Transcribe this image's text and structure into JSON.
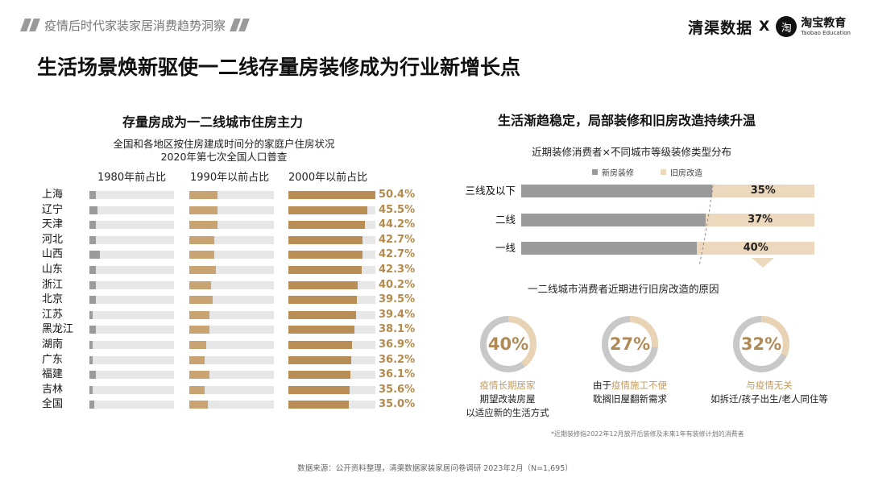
{
  "header": {
    "tag": "疫情后时代家装家居消费趋势洞察",
    "brand_left": "清渠数据",
    "brand_x": "X",
    "brand_logo_char": "淘",
    "brand_right_cn": "淘宝教育",
    "brand_right_en": "Taobao Education"
  },
  "main_title": "生活场景焕新驱使一二线存量房装修成为行业新增长点",
  "left": {
    "title": "存量房成为一二线城市住房主力",
    "subtitle_1": "全国和各地区按住房建成时间分的家庭户住房状况",
    "subtitle_2": "2020年第七次全国人口普查",
    "col_1980": "1980年前占比",
    "col_1990": "1990年以前占比",
    "col_2000": "2000年以前占比"
  },
  "right": {
    "title": "生活渐趋稳定，局部装修和旧房改造持续升温",
    "chart_title": "近期装修消费者×不同城市等级装修类型分布",
    "legend_new": "新房装修",
    "legend_old": "旧房改造",
    "reason_title": "一二线城市消费者近期进行旧房改造的原因",
    "d1_pct": "40%",
    "d1_cap_1": "疫情长期居家",
    "d1_cap_2": "期望改装房屋",
    "d1_cap_3": "以适应新的生活方式",
    "d2_pct": "27%",
    "d2_cap_pre": "由于",
    "d2_cap_acc": "疫情施工不便",
    "d2_cap_2": "耽搁旧屋翻新需求",
    "d3_pct": "32%",
    "d3_cap_1": "与疫情无关",
    "d3_cap_2": "如拆迁/孩子出生/老人同住等",
    "footnote": "*近期装修指2022年12月放开后装修及未来1年有装修计划的消费者"
  },
  "source": "数据来源：公开资料整理，清渠数据家装家居问卷调研 2023年2月（N=1,695）",
  "colors": {
    "gray": "#9b9b9b",
    "gold": "#b98e55",
    "gold_light": "#c9a371",
    "cream": "#ecd9bd",
    "track": "#e7e7e7"
  },
  "chart_data": [
    {
      "type": "bar",
      "orientation": "horizontal",
      "title": "存量房成为一二线城市住房主力",
      "categories": [
        "上海",
        "辽宁",
        "天津",
        "河北",
        "山西",
        "山东",
        "浙江",
        "北京",
        "江苏",
        "黑龙江",
        "湖南",
        "广东",
        "福建",
        "吉林",
        "全国"
      ],
      "series": [
        {
          "name": "1980年前占比",
          "values": [
            4,
            5,
            4,
            4,
            6,
            4,
            4,
            4,
            2,
            4,
            2,
            2,
            4,
            2,
            3
          ]
        },
        {
          "name": "1990年以前占比",
          "values": [
            17,
            17,
            17,
            15,
            15,
            16,
            13,
            14,
            12,
            12,
            10,
            9,
            12,
            9,
            11
          ]
        },
        {
          "name": "2000年以前占比",
          "values": [
            50.4,
            45.5,
            44.2,
            42.7,
            42.7,
            42.3,
            40.2,
            39.5,
            39.4,
            38.1,
            36.9,
            36.2,
            36.1,
            35.6,
            35.0
          ]
        }
      ],
      "labels": [
        "50.4%",
        "45.5%",
        "44.2%",
        "42.7%",
        "42.7%",
        "42.3%",
        "40.2%",
        "39.5%",
        "39.4%",
        "38.1%",
        "36.9%",
        "36.2%",
        "36.1%",
        "35.6%",
        "35.0%"
      ],
      "xlim": [
        0,
        50.4
      ]
    },
    {
      "type": "bar",
      "orientation": "horizontal",
      "stacked": true,
      "title": "近期装修消费者×不同城市等级装修类型分布",
      "categories": [
        "三线及以下",
        "二线",
        "一线"
      ],
      "series": [
        {
          "name": "新房装修",
          "values": [
            65,
            63,
            60
          ]
        },
        {
          "name": "旧房改造",
          "values": [
            35,
            37,
            40
          ]
        }
      ],
      "labels": [
        "35%",
        "37%",
        "40%"
      ],
      "legend": "top"
    },
    {
      "type": "pie",
      "donut": true,
      "title": "一二线城市消费者近期进行旧房改造的原因",
      "categories": [
        "疫情长期居家",
        "疫情施工不便",
        "与疫情无关"
      ],
      "values": [
        40,
        27,
        32
      ]
    }
  ]
}
